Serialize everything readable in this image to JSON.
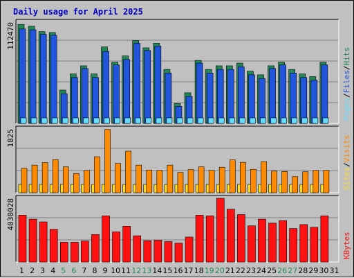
{
  "title": "Daily usage for April 2025",
  "colors": {
    "background": "#c0c0c0",
    "plot": "#c0c0c0",
    "pages": "#66ddff",
    "files": "#2255dd",
    "hits": "#228855",
    "sites": "#ffdd22",
    "visits": "#ff8a00",
    "kbytes": "#ff1111",
    "title": "#0000c0",
    "weekend": "#228855"
  },
  "chart_data": [
    {
      "type": "bar",
      "label": "Pages / Files / Hits",
      "max_label": "112470",
      "ylim": [
        0,
        112470
      ],
      "categories": [
        "1",
        "2",
        "3",
        "4",
        "5",
        "6",
        "7",
        "8",
        "9",
        "10",
        "11",
        "12",
        "13",
        "14",
        "15",
        "16",
        "17",
        "18",
        "19",
        "20",
        "21",
        "22",
        "23",
        "24",
        "25",
        "26",
        "27",
        "28",
        "29",
        "30",
        "31"
      ],
      "series": [
        {
          "name": "Hits",
          "values": [
            110000,
            108000,
            102000,
            101000,
            37000,
            55000,
            64000,
            55000,
            85000,
            68000,
            75000,
            92000,
            84000,
            89000,
            60000,
            22000,
            34000,
            70000,
            60000,
            64000,
            64000,
            67000,
            58000,
            54000,
            64000,
            68000,
            60000,
            55000,
            52000,
            68000,
            null
          ]
        },
        {
          "name": "Files",
          "values": [
            105000,
            104000,
            99000,
            98000,
            33000,
            51000,
            61000,
            51000,
            80000,
            65000,
            71000,
            89000,
            81000,
            86000,
            56000,
            19000,
            30000,
            67000,
            56000,
            60000,
            60000,
            63000,
            54000,
            50000,
            61000,
            65000,
            56000,
            51000,
            48000,
            65000,
            null
          ]
        },
        {
          "name": "Pages",
          "values": [
            5000,
            5000,
            5000,
            5000,
            4000,
            5000,
            5000,
            4000,
            5000,
            4000,
            5000,
            5000,
            5000,
            4000,
            3000,
            2000,
            5000,
            5000,
            5000,
            4000,
            4000,
            4000,
            4000,
            4000,
            4000,
            4000,
            4000,
            4000,
            4000,
            4000,
            null
          ]
        }
      ]
    },
    {
      "type": "bar",
      "label": "Sites / Visits",
      "max_label": "1825",
      "ylim": [
        0,
        1825
      ],
      "categories": [
        "1",
        "2",
        "3",
        "4",
        "5",
        "6",
        "7",
        "8",
        "9",
        "10",
        "11",
        "12",
        "13",
        "14",
        "15",
        "16",
        "17",
        "18",
        "19",
        "20",
        "21",
        "22",
        "23",
        "24",
        "25",
        "26",
        "27",
        "28",
        "29",
        "30",
        "31"
      ],
      "series": [
        {
          "name": "Visits",
          "values": [
            700,
            790,
            860,
            950,
            740,
            550,
            640,
            1030,
            1810,
            840,
            1190,
            790,
            650,
            640,
            790,
            580,
            660,
            740,
            640,
            730,
            940,
            870,
            670,
            890,
            620,
            610,
            460,
            600,
            640,
            640,
            null
          ]
        },
        {
          "name": "Sites",
          "values": [
            160,
            130,
            130,
            130,
            110,
            110,
            130,
            160,
            190,
            150,
            140,
            150,
            170,
            130,
            150,
            100,
            150,
            140,
            130,
            130,
            150,
            150,
            130,
            140,
            130,
            120,
            100,
            120,
            120,
            130,
            null
          ]
        }
      ]
    },
    {
      "type": "bar",
      "label": "KBytes",
      "max_label": "4030028",
      "ylim": [
        0,
        4030028
      ],
      "categories": [
        "1",
        "2",
        "3",
        "4",
        "5",
        "6",
        "7",
        "8",
        "9",
        "10",
        "11",
        "12",
        "13",
        "14",
        "15",
        "16",
        "17",
        "18",
        "19",
        "20",
        "21",
        "22",
        "23",
        "24",
        "25",
        "26",
        "27",
        "28",
        "29",
        "30",
        "31"
      ],
      "series": [
        {
          "name": "KBytes",
          "values": [
            2960000,
            2710000,
            2540000,
            2070000,
            1250000,
            1250000,
            1330000,
            1740000,
            2920000,
            1910000,
            2260000,
            1660000,
            1350000,
            1370000,
            1290000,
            1200000,
            1580000,
            2960000,
            2920000,
            4030000,
            3340000,
            3000000,
            2290000,
            2710000,
            2460000,
            2620000,
            2120000,
            2370000,
            2200000,
            2920000,
            null
          ]
        }
      ]
    }
  ],
  "x_labels": [
    "1",
    "2",
    "3",
    "4",
    "5",
    "6",
    "7",
    "8",
    "9",
    "10",
    "11",
    "12",
    "13",
    "14",
    "15",
    "16",
    "17",
    "18",
    "19",
    "20",
    "21",
    "22",
    "23",
    "24",
    "25",
    "26",
    "27",
    "28",
    "29",
    "30",
    "31"
  ],
  "weekend_days": [
    "5",
    "6",
    "12",
    "13",
    "19",
    "20",
    "26",
    "27"
  ]
}
